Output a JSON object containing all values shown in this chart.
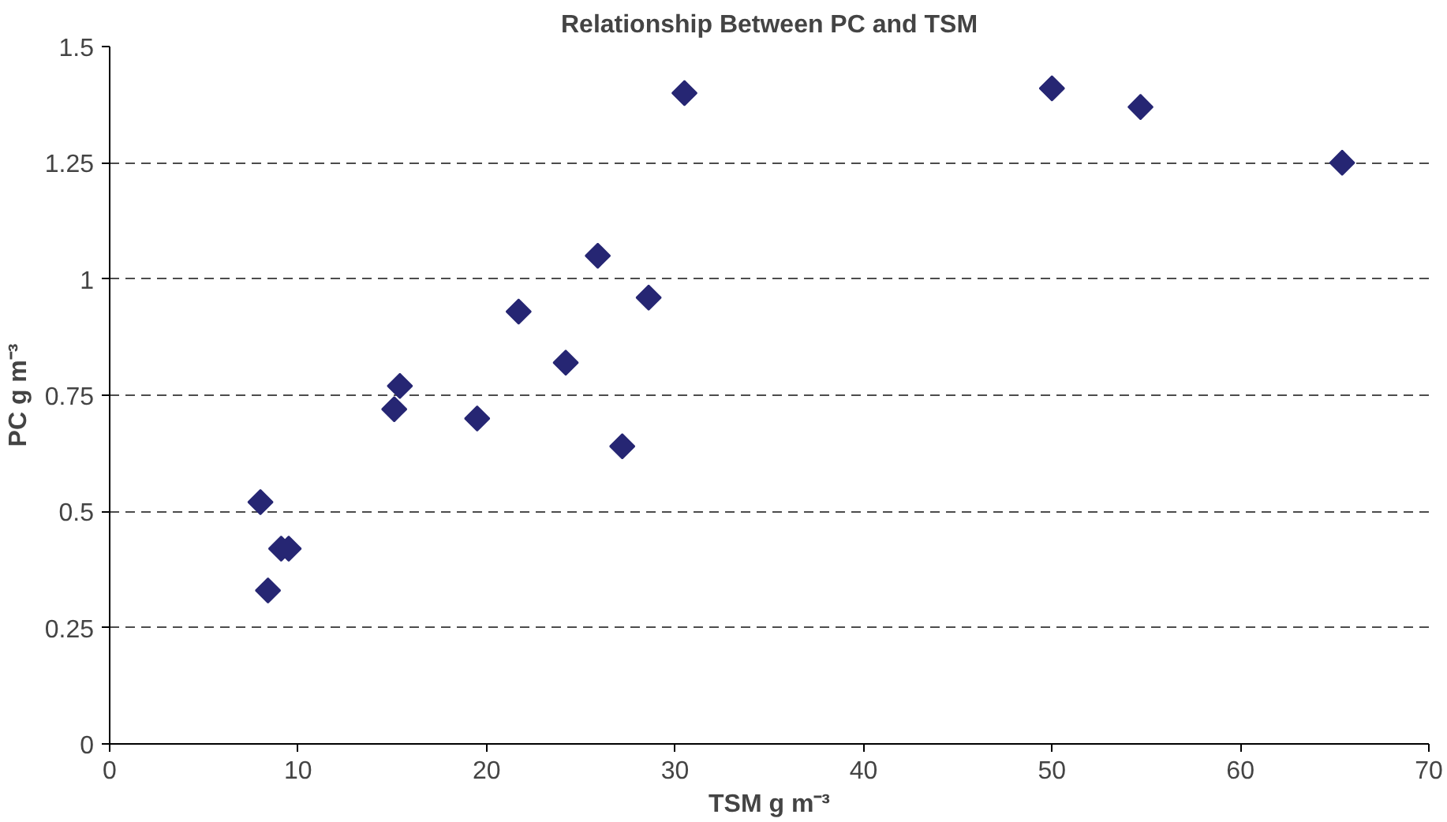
{
  "chart_data": {
    "type": "scatter",
    "title": "Relationship Between PC and TSM",
    "xlabel": "TSM g m⁻³",
    "ylabel": "PC g m⁻³",
    "x": [
      30.5,
      25.9,
      28.6,
      21.7,
      24.2,
      15.4,
      15.1,
      19.5,
      27.2,
      8.0,
      9.1,
      9.5,
      8.4,
      50.0,
      54.7,
      65.4
    ],
    "values": [
      1.4,
      1.05,
      0.96,
      0.93,
      0.82,
      0.77,
      0.72,
      0.7,
      0.64,
      0.52,
      0.42,
      0.42,
      0.33,
      1.41,
      1.37,
      1.25
    ],
    "color": "#262673",
    "marker": "diamond",
    "xlim": [
      0,
      70
    ],
    "xticks": [
      0,
      10,
      20,
      30,
      40,
      50,
      60,
      70
    ],
    "ylim": [
      0,
      1.5
    ],
    "yticks": [
      0,
      0.25,
      0.5,
      0.75,
      1,
      1.25,
      1.5
    ],
    "grid": "y"
  }
}
